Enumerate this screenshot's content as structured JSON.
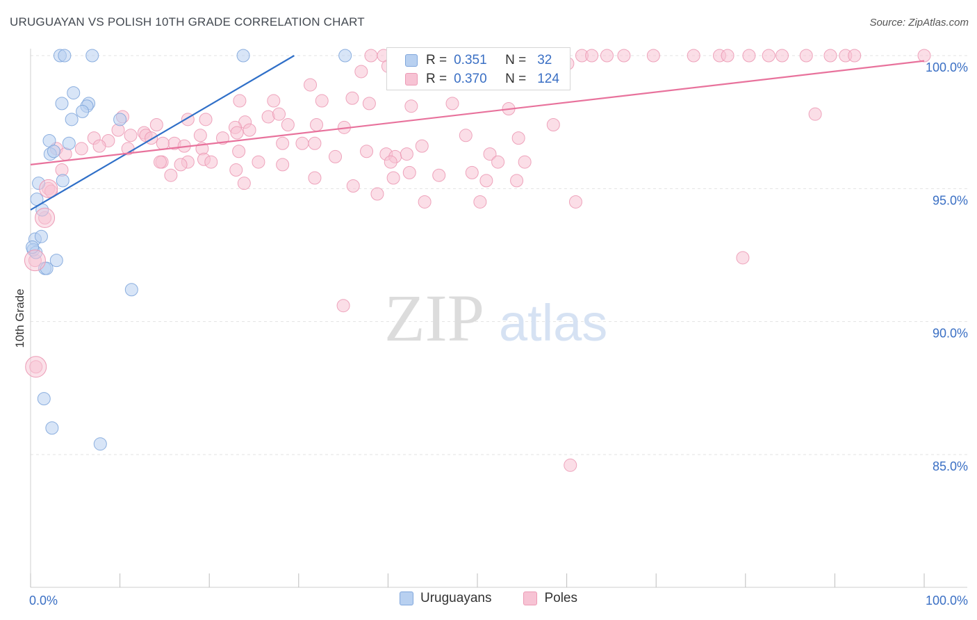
{
  "header": {
    "title": "URUGUAYAN VS POLISH 10TH GRADE CORRELATION CHART",
    "source": "Source: ZipAtlas.com"
  },
  "stats_legend": {
    "rows": [
      {
        "r_label": "R =",
        "r_value": "0.351",
        "n_label": "N =",
        "n_value": "32"
      },
      {
        "r_label": "R =",
        "r_value": "0.370",
        "n_label": "N =",
        "n_value": "124"
      }
    ]
  },
  "watermark": {
    "zip": "ZIP",
    "atlas": "atlas"
  },
  "colors": {
    "uruguayans_fill": "#b8d0f0",
    "uruguayans_stroke": "#7fa6dc",
    "uruguayans_line": "#2f6fc8",
    "poles_fill": "#f7c3d4",
    "poles_stroke": "#ec9ab5",
    "poles_line": "#e8729c",
    "tick_label": "#3a6fc4",
    "grid": "#e3e3e3"
  },
  "chart_data": {
    "type": "scatter",
    "title": "URUGUAYAN VS POLISH 10TH GRADE CORRELATION CHART",
    "xlabel": "",
    "ylabel": "10th Grade",
    "xlim": [
      0,
      100
    ],
    "ylim": [
      80.5,
      100.8
    ],
    "x_tick_labels": [
      "0.0%",
      "100.0%"
    ],
    "y_ticks": [
      85,
      90,
      95,
      100
    ],
    "y_tick_labels": [
      "85.0%",
      "90.0%",
      "95.0%",
      "100.0%"
    ],
    "grid": true,
    "legend": {
      "placement": "bottom",
      "entries": [
        "Uruguayans",
        "Poles"
      ]
    },
    "series": [
      {
        "name": "Uruguayans",
        "r": 0.351,
        "n": 32,
        "trend": {
          "x": [
            0,
            29.5
          ],
          "y": [
            94.2,
            100.0
          ]
        },
        "points": [
          [
            3.3,
            100
          ],
          [
            3.8,
            100
          ],
          [
            6.9,
            100
          ],
          [
            23.8,
            100
          ],
          [
            35.2,
            100
          ],
          [
            4.8,
            98.6
          ],
          [
            3.5,
            98.2
          ],
          [
            6.5,
            98.2
          ],
          [
            6.3,
            98.1
          ],
          [
            5.8,
            97.9
          ],
          [
            4.6,
            97.6
          ],
          [
            10.0,
            97.6
          ],
          [
            2.1,
            96.8
          ],
          [
            4.3,
            96.7
          ],
          [
            2.2,
            96.3
          ],
          [
            2.6,
            96.4
          ],
          [
            3.6,
            95.3
          ],
          [
            0.9,
            95.2
          ],
          [
            0.7,
            94.6
          ],
          [
            1.3,
            94.2
          ],
          [
            0.5,
            93.1
          ],
          [
            1.2,
            93.2
          ],
          [
            0.3,
            92.7
          ],
          [
            0.6,
            92.6
          ],
          [
            2.9,
            92.3
          ],
          [
            1.6,
            92.0
          ],
          [
            1.8,
            92.0
          ],
          [
            11.3,
            91.2
          ],
          [
            1.5,
            87.1
          ],
          [
            2.4,
            86.0
          ],
          [
            7.8,
            85.4
          ],
          [
            0.2,
            92.8
          ]
        ]
      },
      {
        "name": "Poles",
        "r": 0.37,
        "n": 124,
        "trend": {
          "x": [
            0,
            100
          ],
          "y": [
            95.9,
            99.8
          ]
        },
        "points": [
          [
            38.1,
            100
          ],
          [
            39.5,
            100
          ],
          [
            41.2,
            100
          ],
          [
            43.0,
            100
          ],
          [
            45.4,
            100
          ],
          [
            47.1,
            100
          ],
          [
            49.0,
            100
          ],
          [
            51.2,
            100
          ],
          [
            53.3,
            100
          ],
          [
            55.0,
            100
          ],
          [
            57.2,
            100
          ],
          [
            58.9,
            100
          ],
          [
            61.7,
            100
          ],
          [
            62.8,
            100
          ],
          [
            64.5,
            100
          ],
          [
            66.4,
            100
          ],
          [
            69.7,
            100
          ],
          [
            74.2,
            100
          ],
          [
            77.1,
            100
          ],
          [
            78.0,
            100
          ],
          [
            80.4,
            100
          ],
          [
            82.6,
            100
          ],
          [
            84.1,
            100
          ],
          [
            86.8,
            100
          ],
          [
            89.5,
            100
          ],
          [
            91.2,
            100
          ],
          [
            92.2,
            100
          ],
          [
            100,
            100
          ],
          [
            37.0,
            99.4
          ],
          [
            40.0,
            99.6
          ],
          [
            46.8,
            99.5
          ],
          [
            57.4,
            99.4
          ],
          [
            60.1,
            99.7
          ],
          [
            52.8,
            99.2
          ],
          [
            31.3,
            98.9
          ],
          [
            23.4,
            98.3
          ],
          [
            27.2,
            98.3
          ],
          [
            32.6,
            98.3
          ],
          [
            36.0,
            98.4
          ],
          [
            37.9,
            98.2
          ],
          [
            42.6,
            98.1
          ],
          [
            47.2,
            98.2
          ],
          [
            53.5,
            98.0
          ],
          [
            87.8,
            97.8
          ],
          [
            10.3,
            97.7
          ],
          [
            17.6,
            97.6
          ],
          [
            19.6,
            97.6
          ],
          [
            24.0,
            97.5
          ],
          [
            26.6,
            97.7
          ],
          [
            27.8,
            97.8
          ],
          [
            14.1,
            97.4
          ],
          [
            28.8,
            97.4
          ],
          [
            32.0,
            97.4
          ],
          [
            35.1,
            97.3
          ],
          [
            58.5,
            97.4
          ],
          [
            22.9,
            97.3
          ],
          [
            9.8,
            97.2
          ],
          [
            24.5,
            97.2
          ],
          [
            11.2,
            97.0
          ],
          [
            12.7,
            97.1
          ],
          [
            23.1,
            97.1
          ],
          [
            7.1,
            96.9
          ],
          [
            12.9,
            97.0
          ],
          [
            13.5,
            96.9
          ],
          [
            19.0,
            97.0
          ],
          [
            21.5,
            96.9
          ],
          [
            48.7,
            97.0
          ],
          [
            54.6,
            96.9
          ],
          [
            8.7,
            96.8
          ],
          [
            16.1,
            96.7
          ],
          [
            14.8,
            96.7
          ],
          [
            7.7,
            96.6
          ],
          [
            17.2,
            96.6
          ],
          [
            28.2,
            96.7
          ],
          [
            30.4,
            96.7
          ],
          [
            31.8,
            96.7
          ],
          [
            43.8,
            96.6
          ],
          [
            2.9,
            96.5
          ],
          [
            5.7,
            96.5
          ],
          [
            10.9,
            96.5
          ],
          [
            19.2,
            96.5
          ],
          [
            23.3,
            96.4
          ],
          [
            37.6,
            96.4
          ],
          [
            39.8,
            96.3
          ],
          [
            40.8,
            96.2
          ],
          [
            42.1,
            96.3
          ],
          [
            51.4,
            96.3
          ],
          [
            3.9,
            96.3
          ],
          [
            19.4,
            96.1
          ],
          [
            17.6,
            96.0
          ],
          [
            14.7,
            96.0
          ],
          [
            14.5,
            96.0
          ],
          [
            20.2,
            96.0
          ],
          [
            25.5,
            96.0
          ],
          [
            34.1,
            96.2
          ],
          [
            40.3,
            96.0
          ],
          [
            52.3,
            96.0
          ],
          [
            55.3,
            96.0
          ],
          [
            16.8,
            95.9
          ],
          [
            28.2,
            95.9
          ],
          [
            23.0,
            95.7
          ],
          [
            3.5,
            95.7
          ],
          [
            42.4,
            95.6
          ],
          [
            49.4,
            95.6
          ],
          [
            45.7,
            95.5
          ],
          [
            15.7,
            95.5
          ],
          [
            31.8,
            95.4
          ],
          [
            40.6,
            95.4
          ],
          [
            51.0,
            95.3
          ],
          [
            54.4,
            95.3
          ],
          [
            23.9,
            95.2
          ],
          [
            36.1,
            95.1
          ],
          [
            2.0,
            95.0
          ],
          [
            2.3,
            94.9
          ],
          [
            38.8,
            94.8
          ],
          [
            44.1,
            94.5
          ],
          [
            50.3,
            94.5
          ],
          [
            61.0,
            94.5
          ],
          [
            1.6,
            93.9
          ],
          [
            79.7,
            92.4
          ],
          [
            0.5,
            92.3
          ],
          [
            35.0,
            90.6
          ],
          [
            0.6,
            88.3
          ],
          [
            60.4,
            84.6
          ]
        ]
      }
    ]
  },
  "bottom_legend": {
    "items": [
      {
        "label": "Uruguayans"
      },
      {
        "label": "Poles"
      }
    ]
  }
}
